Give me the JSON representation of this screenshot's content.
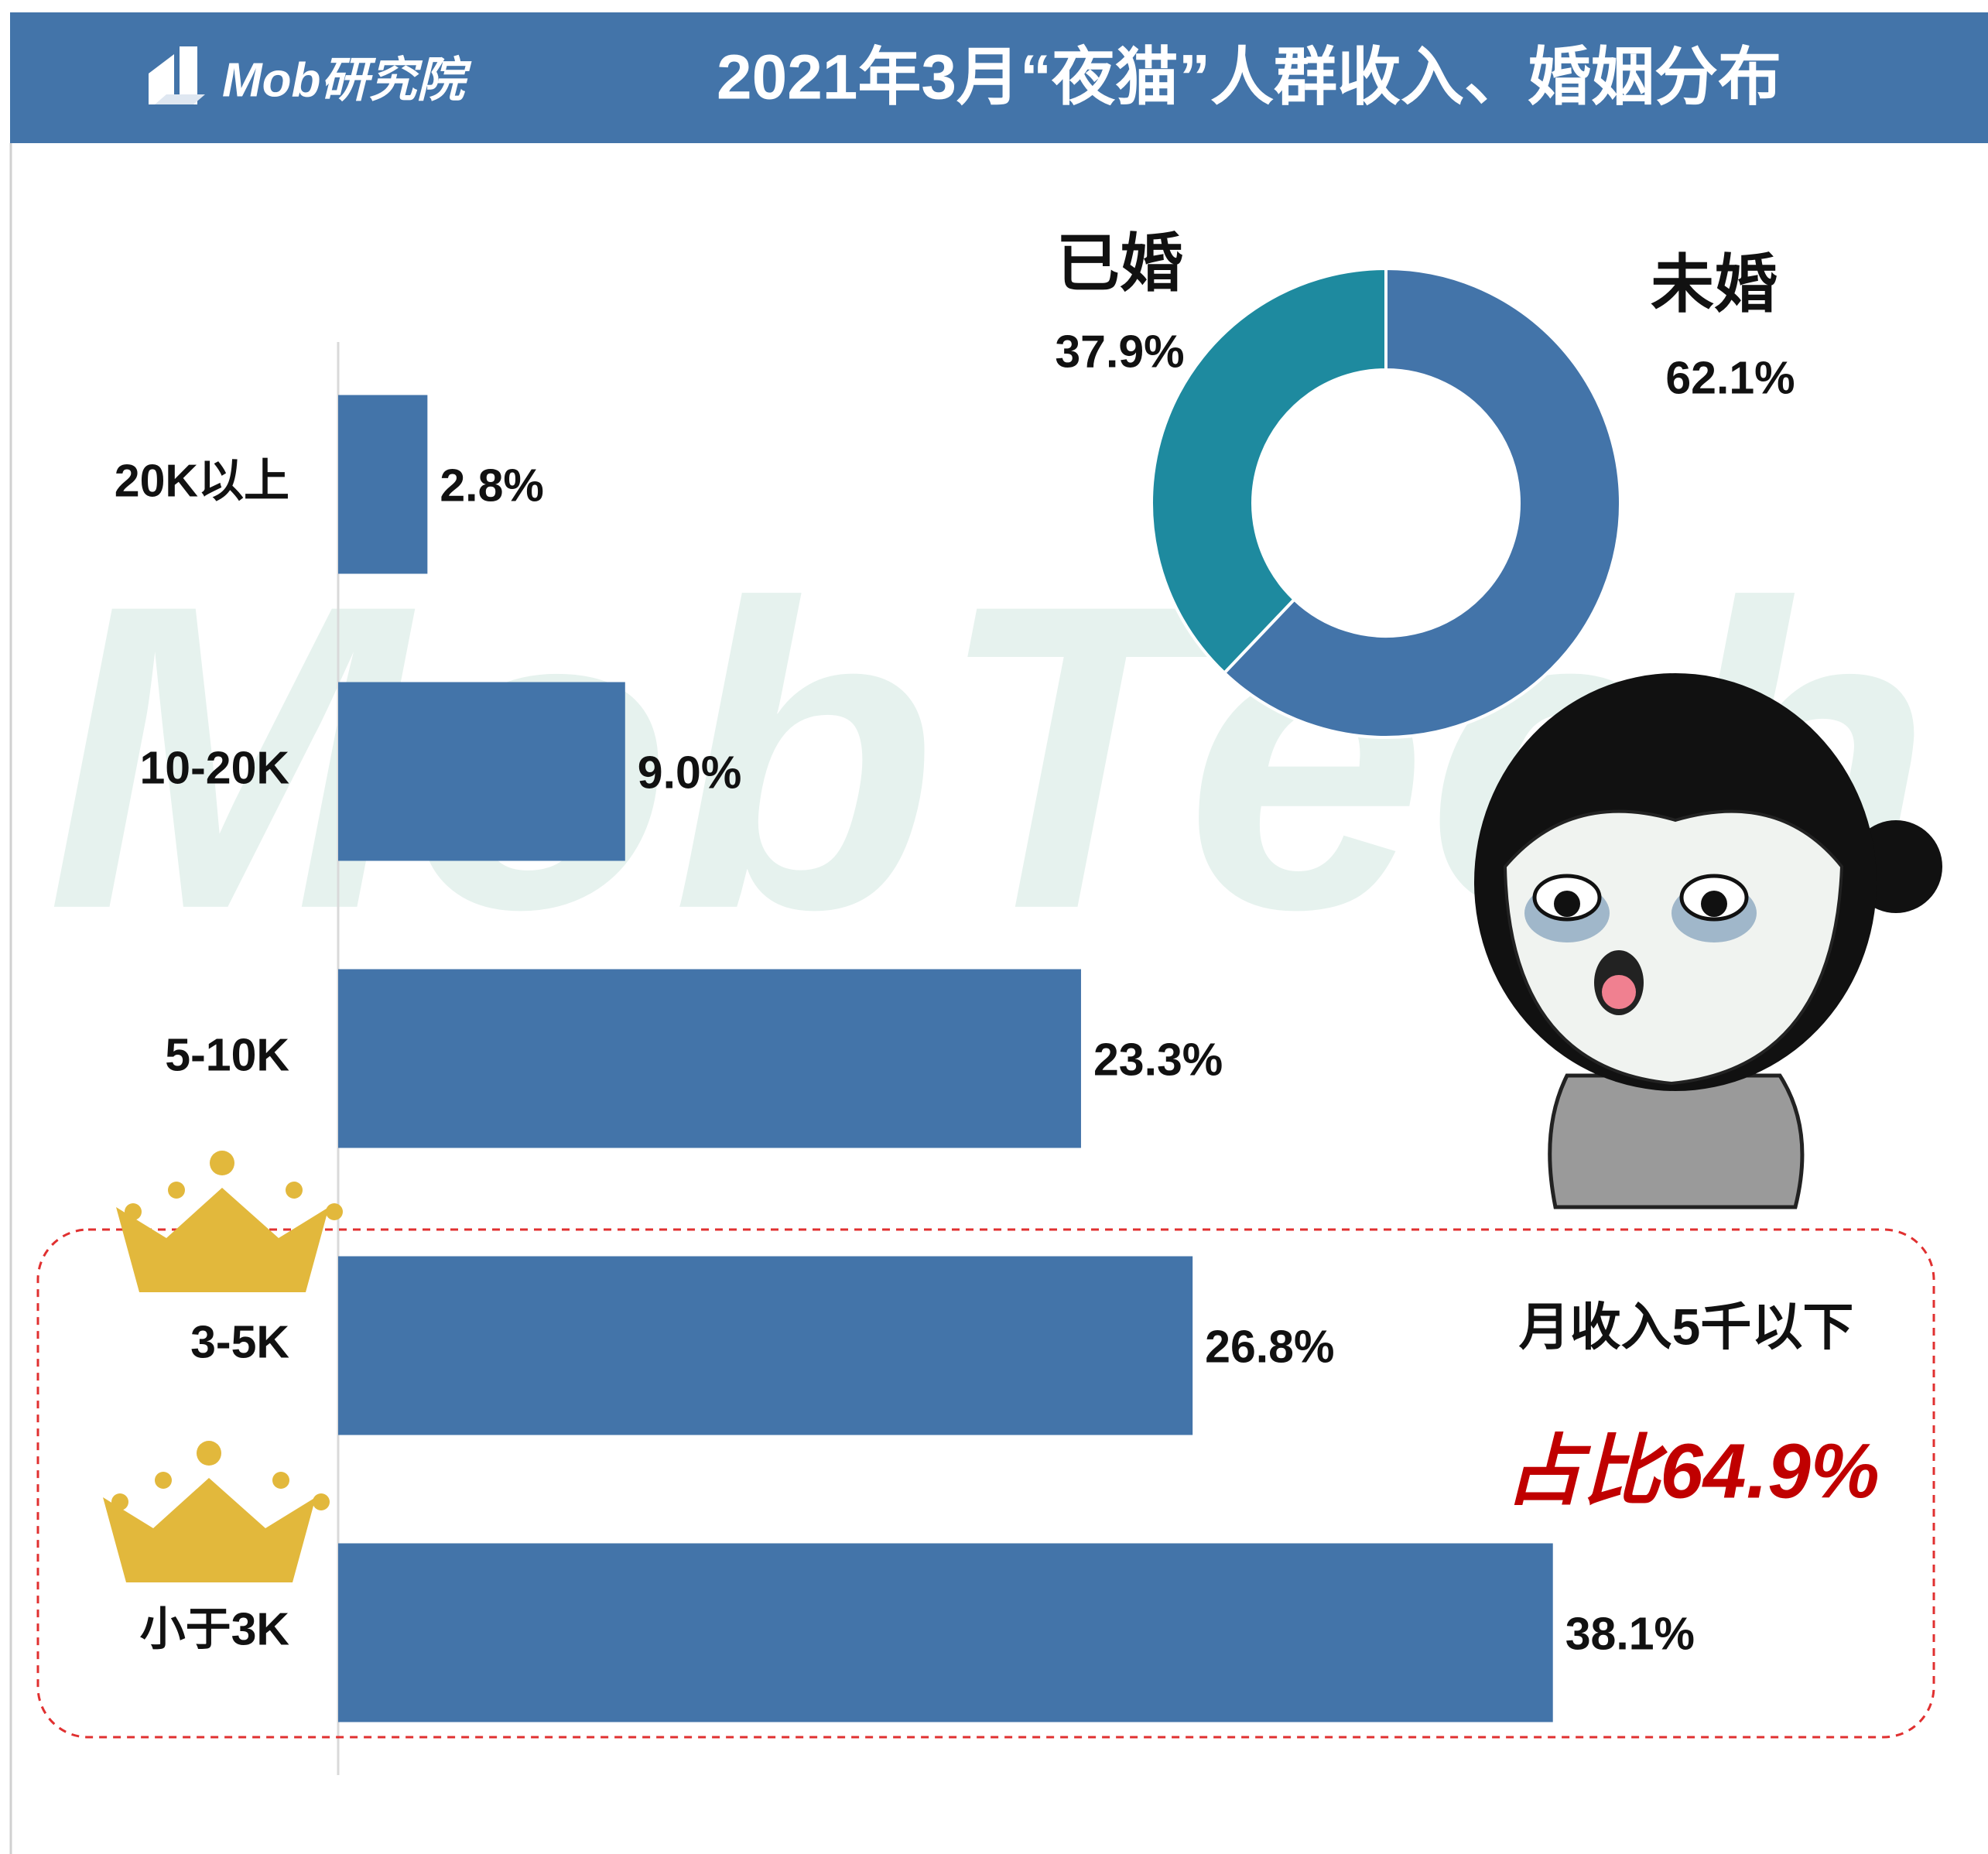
{
  "header": {
    "logo": "Mob研究院",
    "title": "2021年3月“夜猫”人群收入、婚姻分布"
  },
  "watermark": "MobTech",
  "chart_data": [
    {
      "type": "bar",
      "categories": [
        "20K以上",
        "10-20K",
        "5-10K",
        "3-5K",
        "小于3K"
      ],
      "values": [
        2.8,
        9.0,
        23.3,
        26.8,
        38.1
      ],
      "value_labels": [
        "2.8%",
        "9.0%",
        "23.3%",
        "26.8%",
        "38.1%"
      ],
      "color": "#4374a9",
      "annotations": [
        "月收入5千以下",
        "占比64.9%"
      ]
    },
    {
      "type": "pie",
      "categories": [
        "未婚",
        "已婚"
      ],
      "values": [
        62.1,
        37.9
      ],
      "value_labels": [
        "62.1%",
        "37.9%"
      ],
      "colors": [
        "#4374a9",
        "#1e8a9f"
      ]
    }
  ]
}
